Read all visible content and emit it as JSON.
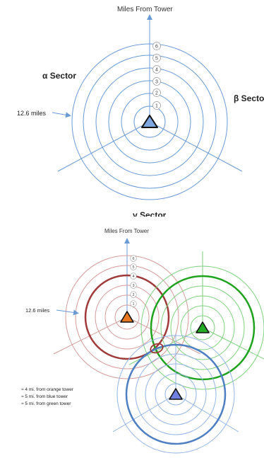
{
  "top_diagram": {
    "axis_title": "Miles From Tower",
    "sectors": {
      "alpha": "α Sector",
      "beta": "β Secto",
      "gamma": "γ Sector"
    },
    "radius_label": "12.6 miles",
    "ring_numbers": [
      "1",
      "2",
      "3",
      "4",
      "5",
      "6"
    ]
  },
  "bottom_diagram": {
    "axis_title": "Miles From Tower",
    "radius_label": "12.6 miles",
    "ring_numbers": [
      "1",
      "2",
      "3",
      "4",
      "5",
      "6"
    ],
    "towers": [
      {
        "name": "orange tower",
        "color": "#e87722"
      },
      {
        "name": "green tower",
        "color": "#22aa22"
      },
      {
        "name": "blue tower",
        "color": "#6f7fe0"
      }
    ],
    "legend": [
      "≈ 4 mi. from orange tower",
      "≈ 5 mi. from blue tower",
      "≈ 5 mi. from green tower"
    ]
  },
  "colors": {
    "blue": "#6a9bd6",
    "red": "#c97b7b",
    "dark_red": "#a03a3a",
    "green": "#59c159",
    "dark_green": "#1fa31f",
    "dark_blue": "#4f7fc3"
  }
}
